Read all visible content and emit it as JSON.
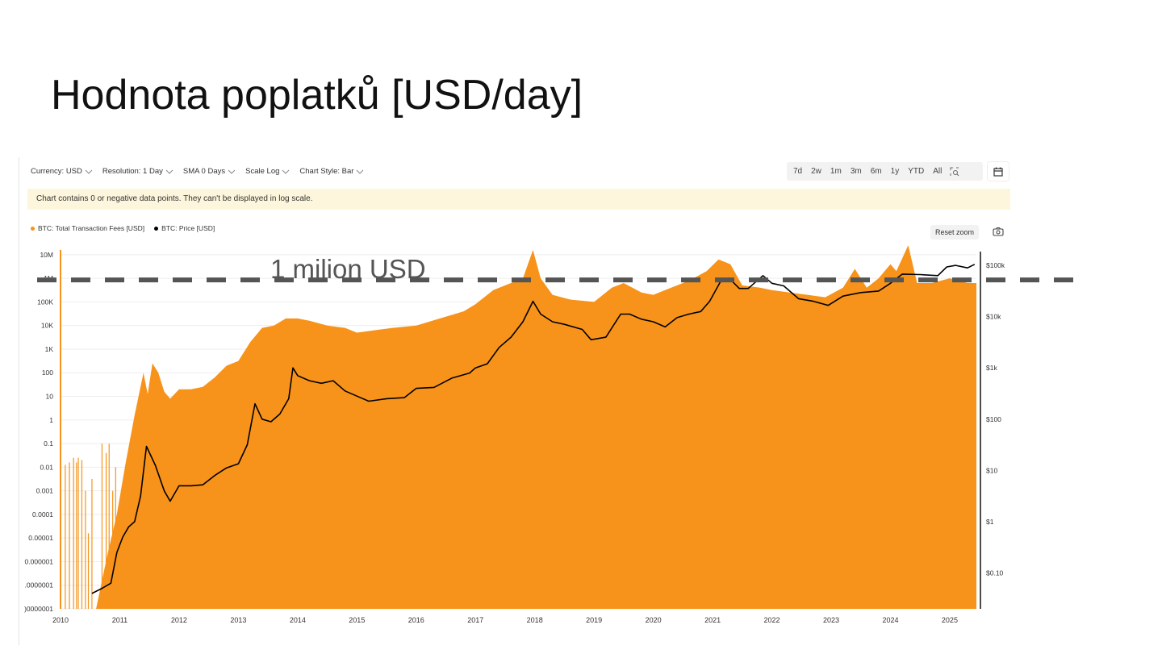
{
  "slide": {
    "title": "Hodnota poplatků [USD/day]"
  },
  "toolbar": {
    "currency": "Currency: USD",
    "resolution": "Resolution: 1 Day",
    "sma": "SMA 0 Days",
    "scale": "Scale Log",
    "chart_style": "Chart Style: Bar"
  },
  "ranges": [
    "7d",
    "2w",
    "1m",
    "3m",
    "6m",
    "1y",
    "YTD",
    "All"
  ],
  "icons": {
    "zoom_select": "zoom-select-icon",
    "calendar": "calendar-icon",
    "camera": "camera-icon",
    "chevron": "chevron-down-icon"
  },
  "warning": "Chart contains 0 or negative data points. They can't be displayed in log scale.",
  "reset_zoom": "Reset zoom",
  "colors": {
    "fees": "#f7931a",
    "price": "#000000",
    "dashed": "#555555",
    "warning_bg": "#fdf6dc"
  },
  "chart_data": {
    "type": "bar",
    "title": "Hodnota poplatků [USD/day]",
    "annotation": {
      "text": "1 milion USD",
      "value": 1000000,
      "style": "dashed horizontal line"
    },
    "x_ticks": [
      "2010",
      "2011",
      "2012",
      "2013",
      "2014",
      "2015",
      "2016",
      "2017",
      "2018",
      "2019",
      "2020",
      "2021",
      "2022",
      "2023",
      "2024",
      "2025"
    ],
    "xlim": [
      2010.0,
      2025.45
    ],
    "y_left": {
      "scale": "log",
      "tick_labels": [
        "10M",
        "1M",
        "100K",
        "10K",
        "1K",
        "100",
        "10",
        "1",
        "0.1",
        "0.01",
        "0.001",
        "0.0001",
        "0.00001",
        "0.000001",
        ".0000001",
        ")0000001"
      ],
      "tick_exponents": [
        7,
        6,
        5,
        4,
        3,
        2,
        1,
        0,
        -1,
        -2,
        -3,
        -4,
        -5,
        -6,
        -7,
        -8
      ],
      "ylim_exp": [
        -8,
        7.2
      ]
    },
    "y_right": {
      "scale": "log",
      "tick_labels": [
        "$100k",
        "$10k",
        "$1k",
        "$100",
        "$10",
        "$1",
        "$0.10"
      ],
      "tick_exponents": [
        5,
        4,
        3,
        2,
        1,
        0,
        -1
      ],
      "ylim_exp": [
        -1.7,
        5.3
      ]
    },
    "series": [
      {
        "name": "BTC: Total Transaction Fees [USD]",
        "axis": "left",
        "type": "bar",
        "log10_values": [
          [
            2010.3,
            -8.0
          ],
          [
            2010.6,
            -8.0
          ],
          [
            2010.8,
            -5.6
          ],
          [
            2010.95,
            -4.0
          ],
          [
            2011.1,
            -1.8
          ],
          [
            2011.25,
            0.2
          ],
          [
            2011.4,
            2.0
          ],
          [
            2011.47,
            1.1
          ],
          [
            2011.55,
            2.4
          ],
          [
            2011.65,
            2.0
          ],
          [
            2011.75,
            1.2
          ],
          [
            2011.85,
            0.9
          ],
          [
            2012.0,
            1.3
          ],
          [
            2012.2,
            1.3
          ],
          [
            2012.4,
            1.4
          ],
          [
            2012.6,
            1.8
          ],
          [
            2012.8,
            2.3
          ],
          [
            2013.0,
            2.5
          ],
          [
            2013.2,
            3.3
          ],
          [
            2013.4,
            3.9
          ],
          [
            2013.6,
            4.0
          ],
          [
            2013.8,
            4.3
          ],
          [
            2014.0,
            4.3
          ],
          [
            2014.2,
            4.2
          ],
          [
            2014.5,
            4.0
          ],
          [
            2014.8,
            3.9
          ],
          [
            2015.0,
            3.7
          ],
          [
            2015.3,
            3.8
          ],
          [
            2015.6,
            3.9
          ],
          [
            2016.0,
            4.0
          ],
          [
            2016.4,
            4.3
          ],
          [
            2016.8,
            4.6
          ],
          [
            2017.0,
            4.9
          ],
          [
            2017.3,
            5.5
          ],
          [
            2017.5,
            5.7
          ],
          [
            2017.8,
            6.0
          ],
          [
            2017.97,
            7.2
          ],
          [
            2018.1,
            6.0
          ],
          [
            2018.3,
            5.3
          ],
          [
            2018.6,
            5.1
          ],
          [
            2019.0,
            5.0
          ],
          [
            2019.3,
            5.6
          ],
          [
            2019.5,
            5.8
          ],
          [
            2019.8,
            5.4
          ],
          [
            2020.0,
            5.3
          ],
          [
            2020.3,
            5.6
          ],
          [
            2020.6,
            5.9
          ],
          [
            2020.9,
            6.3
          ],
          [
            2021.1,
            6.8
          ],
          [
            2021.3,
            6.6
          ],
          [
            2021.5,
            5.7
          ],
          [
            2021.8,
            5.6
          ],
          [
            2022.0,
            5.5
          ],
          [
            2022.3,
            5.4
          ],
          [
            2022.6,
            5.3
          ],
          [
            2022.9,
            5.2
          ],
          [
            2023.2,
            5.6
          ],
          [
            2023.4,
            6.4
          ],
          [
            2023.6,
            5.6
          ],
          [
            2023.8,
            6.0
          ],
          [
            2024.0,
            6.6
          ],
          [
            2024.1,
            6.3
          ],
          [
            2024.3,
            7.4
          ],
          [
            2024.45,
            5.8
          ],
          [
            2024.7,
            5.8
          ],
          [
            2025.0,
            6.0
          ],
          [
            2025.3,
            5.8
          ]
        ]
      },
      {
        "name": "BTC: Price [USD]",
        "axis": "right",
        "type": "line",
        "log10_values": [
          [
            2010.53,
            -1.4
          ],
          [
            2010.7,
            -1.3
          ],
          [
            2010.85,
            -1.2
          ],
          [
            2010.95,
            -0.6
          ],
          [
            2011.05,
            -0.3
          ],
          [
            2011.15,
            -0.1
          ],
          [
            2011.25,
            0.0
          ],
          [
            2011.35,
            0.5
          ],
          [
            2011.45,
            1.47
          ],
          [
            2011.6,
            1.1
          ],
          [
            2011.75,
            0.6
          ],
          [
            2011.85,
            0.4
          ],
          [
            2012.0,
            0.7
          ],
          [
            2012.2,
            0.7
          ],
          [
            2012.4,
            0.72
          ],
          [
            2012.6,
            0.9
          ],
          [
            2012.8,
            1.05
          ],
          [
            2013.0,
            1.13
          ],
          [
            2013.15,
            1.5
          ],
          [
            2013.28,
            2.3
          ],
          [
            2013.4,
            2.0
          ],
          [
            2013.55,
            1.95
          ],
          [
            2013.7,
            2.1
          ],
          [
            2013.85,
            2.4
          ],
          [
            2013.92,
            3.0
          ],
          [
            2014.0,
            2.85
          ],
          [
            2014.2,
            2.75
          ],
          [
            2014.4,
            2.7
          ],
          [
            2014.6,
            2.75
          ],
          [
            2014.8,
            2.55
          ],
          [
            2015.0,
            2.45
          ],
          [
            2015.2,
            2.35
          ],
          [
            2015.5,
            2.4
          ],
          [
            2015.8,
            2.42
          ],
          [
            2016.0,
            2.6
          ],
          [
            2016.3,
            2.62
          ],
          [
            2016.6,
            2.8
          ],
          [
            2016.9,
            2.9
          ],
          [
            2017.0,
            3.0
          ],
          [
            2017.2,
            3.08
          ],
          [
            2017.4,
            3.4
          ],
          [
            2017.6,
            3.6
          ],
          [
            2017.8,
            3.9
          ],
          [
            2017.97,
            4.3
          ],
          [
            2018.1,
            4.05
          ],
          [
            2018.3,
            3.9
          ],
          [
            2018.5,
            3.85
          ],
          [
            2018.8,
            3.75
          ],
          [
            2018.95,
            3.55
          ],
          [
            2019.2,
            3.6
          ],
          [
            2019.45,
            4.05
          ],
          [
            2019.6,
            4.05
          ],
          [
            2019.8,
            3.95
          ],
          [
            2020.0,
            3.9
          ],
          [
            2020.2,
            3.8
          ],
          [
            2020.4,
            3.98
          ],
          [
            2020.6,
            4.05
          ],
          [
            2020.8,
            4.1
          ],
          [
            2020.95,
            4.3
          ],
          [
            2021.15,
            4.72
          ],
          [
            2021.28,
            4.75
          ],
          [
            2021.45,
            4.55
          ],
          [
            2021.6,
            4.55
          ],
          [
            2021.85,
            4.8
          ],
          [
            2022.0,
            4.65
          ],
          [
            2022.2,
            4.6
          ],
          [
            2022.45,
            4.35
          ],
          [
            2022.7,
            4.3
          ],
          [
            2022.95,
            4.22
          ],
          [
            2023.2,
            4.4
          ],
          [
            2023.5,
            4.47
          ],
          [
            2023.8,
            4.5
          ],
          [
            2024.0,
            4.65
          ],
          [
            2024.2,
            4.83
          ],
          [
            2024.5,
            4.82
          ],
          [
            2024.8,
            4.8
          ],
          [
            2024.95,
            4.97
          ],
          [
            2025.1,
            5.0
          ],
          [
            2025.3,
            4.95
          ],
          [
            2025.42,
            5.02
          ]
        ]
      }
    ]
  }
}
